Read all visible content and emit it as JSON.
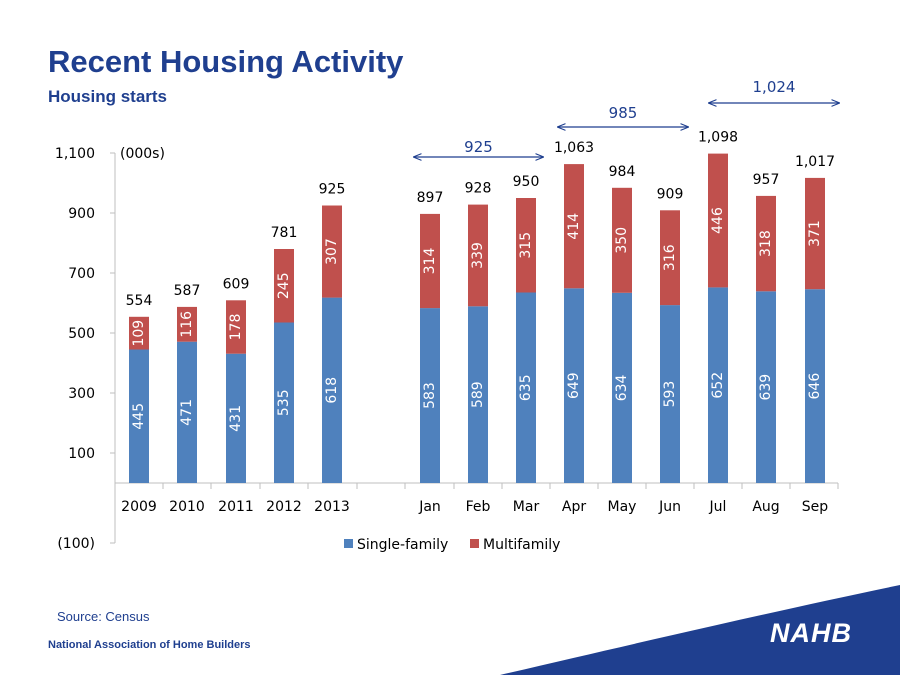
{
  "header": {
    "title": "Recent Housing Activity",
    "subtitle": "Housing starts"
  },
  "footer": {
    "source": "Source: Census",
    "organization": "National Association of Home Builders",
    "logo_text": "NAHB"
  },
  "colors": {
    "single": "#4f81bd",
    "multi": "#c0504d",
    "brand": "#1f3f8f"
  },
  "chart_data": {
    "type": "bar",
    "stacked": true,
    "unit_label": "(000s)",
    "categories": [
      "2009",
      "2010",
      "2011",
      "2012",
      "2013",
      "Jan",
      "Feb",
      "Mar",
      "Apr",
      "May",
      "Jun",
      "Jul",
      "Aug",
      "Sep"
    ],
    "series": [
      {
        "name": "Single-family",
        "values": [
          445,
          471,
          431,
          535,
          618,
          583,
          589,
          635,
          649,
          634,
          593,
          652,
          639,
          646
        ]
      },
      {
        "name": "Multifamily",
        "values": [
          109,
          116,
          178,
          245,
          307,
          314,
          339,
          315,
          414,
          350,
          316,
          446,
          318,
          371
        ]
      }
    ],
    "totals": [
      "554",
      "587",
      "609",
      "781",
      "925",
      "897",
      "928",
      "950",
      "1,063",
      "984",
      "909",
      "1,098",
      "957",
      "1,017"
    ],
    "ylim": [
      -100,
      1100
    ],
    "yticks": [
      "(100)",
      "100",
      "300",
      "500",
      "700",
      "900",
      "1,100"
    ],
    "ytick_values": [
      -100,
      100,
      300,
      500,
      700,
      900,
      1100
    ],
    "legend": "bottom",
    "annotations": [
      {
        "text": "925",
        "from": "Jan",
        "to": "Mar"
      },
      {
        "text": "985",
        "from": "Apr",
        "to": "Jun"
      },
      {
        "text": "1,024",
        "from": "Jul",
        "to": "Sep"
      }
    ]
  }
}
